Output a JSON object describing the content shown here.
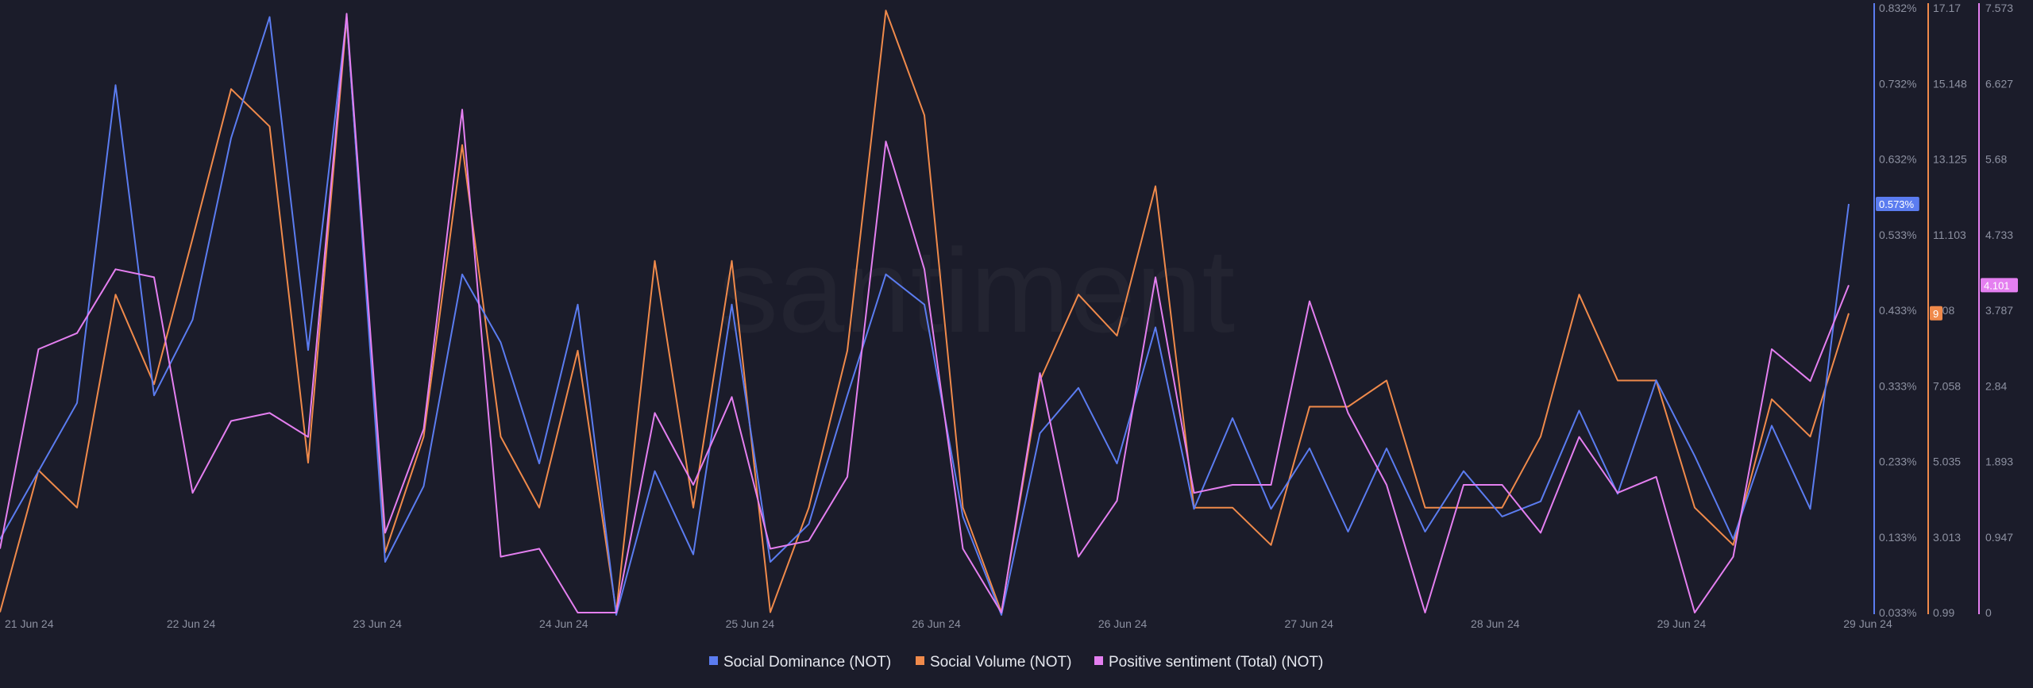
{
  "watermark": "santiment",
  "colors": {
    "background": "#1b1c2a",
    "dominance": "#5b7cf0",
    "volume": "#f08a4b",
    "sentiment": "#e47ff0"
  },
  "chart_data": {
    "type": "line",
    "x_ticks": [
      "21 Jun 24",
      "22 Jun 24",
      "23 Jun 24",
      "24 Jun 24",
      "25 Jun 24",
      "26 Jun 24",
      "26 Jun 24",
      "27 Jun 24",
      "28 Jun 24",
      "29 Jun 24",
      "29 Jun 24"
    ],
    "legend_position": "bottom-center",
    "grid": false,
    "series": [
      {
        "key": "dominance",
        "name": "Social Dominance (NOT)",
        "color": "#5b7cf0",
        "axis_ticks": [
          "0.832%",
          "0.732%",
          "0.632%",
          "0.533%",
          "0.433%",
          "0.333%",
          "0.233%",
          "0.133%",
          "0.033%"
        ],
        "ylim": [
          0.033,
          0.832
        ],
        "current_label": "0.573%",
        "values": [
          0.13,
          0.22,
          0.31,
          0.73,
          0.32,
          0.42,
          0.66,
          0.82,
          0.38,
          0.82,
          0.1,
          0.2,
          0.48,
          0.39,
          0.23,
          0.44,
          0.03,
          0.22,
          0.11,
          0.44,
          0.1,
          0.15,
          0.32,
          0.48,
          0.44,
          0.16,
          0.03,
          0.27,
          0.33,
          0.23,
          0.41,
          0.17,
          0.29,
          0.17,
          0.25,
          0.14,
          0.25,
          0.14,
          0.22,
          0.16,
          0.18,
          0.3,
          0.19,
          0.34,
          0.24,
          0.13,
          0.28,
          0.17,
          0.573
        ]
      },
      {
        "key": "volume",
        "name": "Social Volume (NOT)",
        "color": "#f08a4b",
        "axis_ticks": [
          "17.17",
          "15.148",
          "13.125",
          "11.103",
          "9.08",
          "7.058",
          "5.035",
          "3.013",
          "0.99"
        ],
        "ylim": [
          0.99,
          17.17
        ],
        "current_label": "9",
        "values": [
          1.0,
          4.8,
          3.8,
          9.5,
          7.1,
          11.0,
          15.0,
          14.0,
          5.0,
          16.9,
          2.6,
          5.7,
          13.5,
          5.7,
          3.8,
          8.0,
          1.0,
          10.4,
          3.8,
          10.4,
          1.0,
          3.8,
          8.0,
          17.1,
          14.3,
          3.8,
          1.0,
          7.2,
          9.5,
          8.4,
          12.4,
          3.8,
          3.8,
          2.8,
          6.5,
          6.5,
          7.2,
          3.8,
          3.8,
          3.8,
          5.7,
          9.5,
          7.2,
          7.2,
          3.8,
          2.8,
          6.7,
          5.7,
          9.0
        ]
      },
      {
        "key": "sentiment",
        "name": "Positive sentiment (Total) (NOT)",
        "color": "#e47ff0",
        "axis_ticks": [
          "7.573",
          "6.627",
          "5.68",
          "4.733",
          "3.787",
          "2.84",
          "1.893",
          "0.947",
          "0"
        ],
        "ylim": [
          0,
          7.573
        ],
        "current_label": "4.101",
        "values": [
          0.8,
          3.3,
          3.5,
          4.3,
          4.2,
          1.5,
          2.4,
          2.5,
          2.2,
          7.5,
          1.0,
          2.3,
          6.3,
          0.7,
          0.8,
          0.0,
          0.0,
          2.5,
          1.6,
          2.7,
          0.8,
          0.9,
          1.7,
          5.9,
          4.3,
          0.8,
          0.0,
          3.0,
          0.7,
          1.4,
          4.2,
          1.5,
          1.6,
          1.6,
          3.9,
          2.5,
          1.6,
          0.0,
          1.6,
          1.6,
          1.0,
          2.2,
          1.5,
          1.7,
          0.0,
          0.7,
          3.3,
          2.9,
          4.101
        ]
      }
    ]
  }
}
